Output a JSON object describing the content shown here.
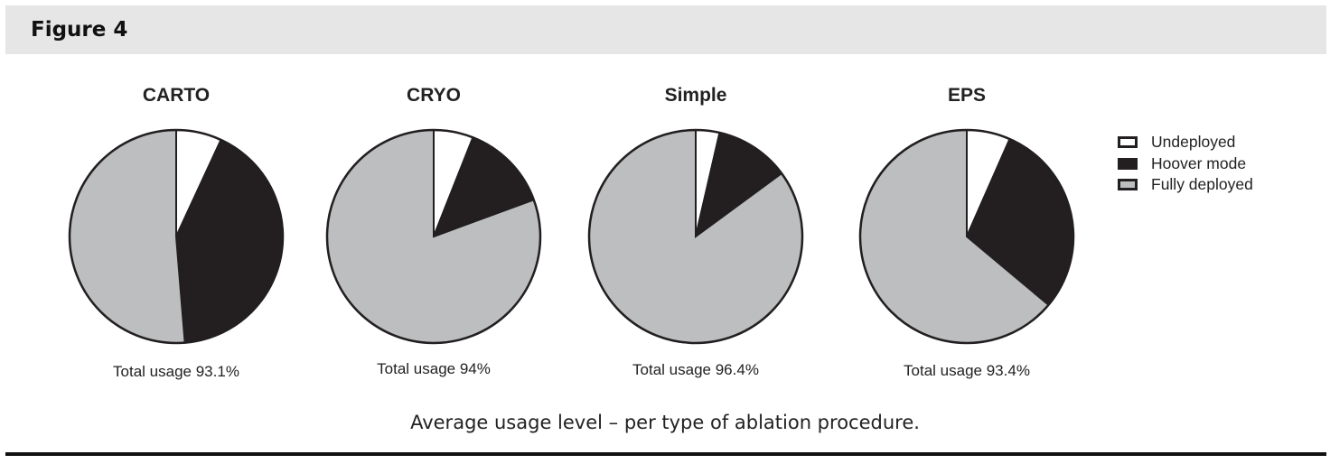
{
  "header": {
    "title": "Figure 4"
  },
  "caption": "Average usage level – per type of ablation procedure.",
  "chart_data": {
    "type": "pie",
    "categories": [
      "Undeployed",
      "Hoover mode",
      "Fully deployed"
    ],
    "colors": [
      "#ffffff",
      "#231f20",
      "#bcbec0"
    ],
    "legend_position": "right",
    "pies": [
      {
        "title": "CARTO",
        "total_label": "Total usage 93.1%",
        "values": [
          6.9,
          41.8,
          51.3
        ]
      },
      {
        "title": "CRYO",
        "total_label": "Total usage 94%",
        "values": [
          6.0,
          13.4,
          80.6
        ]
      },
      {
        "title": "Simple",
        "total_label": "Total usage 96.4%",
        "values": [
          3.6,
          11.3,
          85.1
        ]
      },
      {
        "title": "EPS",
        "total_label": "Total usage 93.4%",
        "values": [
          6.6,
          29.5,
          63.9
        ]
      }
    ]
  }
}
